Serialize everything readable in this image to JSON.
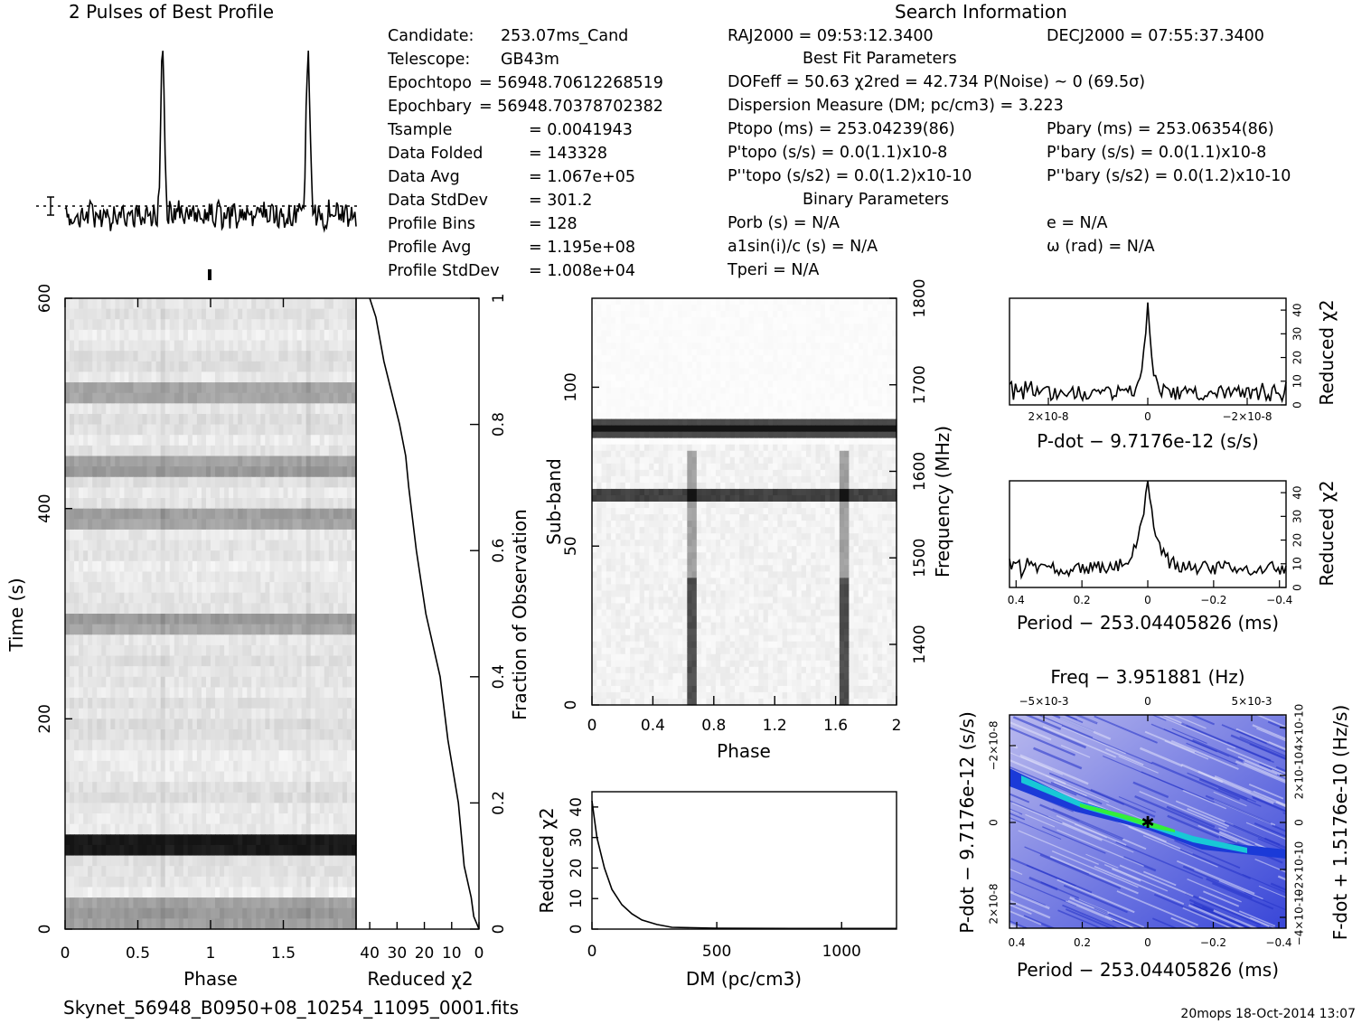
{
  "profile_panel": {
    "title": "2 Pulses of Best Profile"
  },
  "search_info": {
    "title": "Search Information",
    "ra": "RAJ2000 = 09:53:12.3400",
    "dec": "DECJ2000 = 07:55:37.3400",
    "best_fit_title": "Best Fit Parameters",
    "binary_title": "Binary Parameters",
    "left_rows": [
      {
        "label": "Candidate:",
        "value": "253.07ms_Cand"
      },
      {
        "label": "Telescope:",
        "value": "GB43m"
      },
      {
        "label": "Epochtopo",
        "value": "= 56948.70612268519"
      },
      {
        "label": "Epochbary",
        "value": "= 56948.70378702382"
      },
      {
        "label": "Tsample",
        "value": "=  0.0041943"
      },
      {
        "label": "Data Folded",
        "value": "=  143328"
      },
      {
        "label": "Data Avg",
        "value": "=  1.067e+05"
      },
      {
        "label": "Data StdDev",
        "value": "=  301.2"
      },
      {
        "label": "Profile Bins",
        "value": "=  128"
      },
      {
        "label": "Profile Avg",
        "value": "=  1.195e+08"
      },
      {
        "label": "Profile StdDev",
        "value": "=  1.008e+04"
      }
    ],
    "dof_line": "DOFeff = 50.63  χ2red = 42.734   P(Noise) ~ 0    (69.5σ)",
    "dm_line": "Dispersion Measure (DM; pc/cm3) = 3.223",
    "p_topo": "Ptopo (ms) =  253.04239(86)",
    "pd_topo": "P'topo (s/s) = 0.0(1.1)x10-8",
    "pdd_topo": "P''topo (s/s2) = 0.0(1.2)x10-10",
    "p_bary": "Pbary (ms) =  253.06354(86)",
    "pd_bary": "P'bary (s/s) = 0.0(1.1)x10-8",
    "pdd_bary": "P''bary (s/s2) = 0.0(1.2)x10-10",
    "porb": "Porb (s) = N/A",
    "a1": "a1sin(i)/c (s) = N/A",
    "tperi": "Tperi = N/A",
    "ecc": "e = N/A",
    "omega": "ω (rad) = N/A"
  },
  "axes": {
    "time_label": "Time (s)",
    "phase_label": "Phase",
    "reduced_chi2_label": "Reduced χ2",
    "fraction_label": "Fraction of Observation",
    "subband_label": "Sub-band",
    "frequency_label": "Frequency (MHz)",
    "dm_label": "DM (pc/cm3)",
    "pdot_label": "P-dot − 9.7176e-12 (s/s)",
    "period_label": "Period − 253.04405826 (ms)",
    "freq_label": "Freq − 3.951881 (Hz)",
    "fdot_label": "F-dot + 1.5176e-10 (Hz/s)"
  },
  "footer": {
    "filename": "Skynet_56948_B0950+08_10254_11095_0001.fits",
    "stamp": "20mops 18-Oct-2014 13:07"
  },
  "colors": {
    "ink": "#000000",
    "ppdot_low": "#1a2ad8",
    "ppdot_mid": "#00d6d6",
    "ppdot_high": "#3cff3c",
    "ppdot_bg": "#c8c8f0"
  },
  "chart_data": [
    {
      "type": "line",
      "title": "2 Pulses of Best Profile",
      "xlabel": "",
      "ylabel": "",
      "x_range": [
        0,
        2
      ],
      "peaks_at_phase": [
        0.67,
        1.67
      ],
      "peak_height_rel": 1.0,
      "baseline_rel": 0.15
    },
    {
      "type": "heatmap",
      "name": "time-phase",
      "xlabel": "Phase",
      "ylabel": "Time (s)",
      "x_range": [
        0,
        2
      ],
      "y_range": [
        0,
        600
      ],
      "x_ticks": [
        "0",
        "0.5",
        "1",
        "1.5"
      ],
      "y_ticks": [
        "0",
        "200",
        "400",
        "600"
      ],
      "dark_rows_time_s": [
        80,
        10,
        24,
        510,
        440,
        390,
        290
      ]
    },
    {
      "type": "line",
      "name": "reduced-chi2 vs fraction",
      "xlabel": "Reduced χ2",
      "ylabel": "Fraction of Observation",
      "x_ticks": [
        "40",
        "30",
        "20",
        "10",
        "0"
      ],
      "y_ticks": [
        "0",
        "0.2",
        "0.4",
        "0.6",
        "0.8",
        "1"
      ],
      "x_range": [
        45,
        0
      ],
      "y_range": [
        0,
        1
      ],
      "points": [
        [
          0,
          0
        ],
        [
          1,
          0.02
        ],
        [
          3,
          0.05
        ],
        [
          5,
          0.1
        ],
        [
          8,
          0.2
        ],
        [
          11,
          0.3
        ],
        [
          14,
          0.4
        ],
        [
          19,
          0.5
        ],
        [
          23,
          0.6
        ],
        [
          26,
          0.7
        ],
        [
          27,
          0.75
        ],
        [
          30,
          0.8
        ],
        [
          34,
          0.9
        ],
        [
          38,
          0.97
        ],
        [
          40,
          1.0
        ]
      ]
    },
    {
      "type": "heatmap",
      "name": "subband-phase",
      "xlabel": "Phase",
      "ylabel": "Sub-band",
      "x_range": [
        0,
        2
      ],
      "y_range": [
        0,
        128
      ],
      "x_ticks": [
        "0",
        "0.4",
        "0.8",
        "1.2",
        "1.6",
        "2"
      ],
      "y_ticks": [
        "0",
        "50",
        "100"
      ],
      "right_ticks": [
        "1400",
        "1500",
        "1600",
        "1700",
        "1800"
      ],
      "dark_subbands": [
        66,
        86,
        88
      ]
    },
    {
      "type": "line",
      "name": "reduced-chi2 vs DM",
      "xlabel": "DM (pc/cm3)",
      "ylabel": "Reduced χ2",
      "x_range": [
        0,
        1220
      ],
      "y_range": [
        0,
        45
      ],
      "x_ticks": [
        "0",
        "500",
        "1000"
      ],
      "y_ticks": [
        "0",
        "10",
        "20",
        "30",
        "40"
      ],
      "points": [
        [
          0,
          42
        ],
        [
          20,
          30
        ],
        [
          50,
          20
        ],
        [
          80,
          13
        ],
        [
          120,
          8
        ],
        [
          160,
          5
        ],
        [
          200,
          3
        ],
        [
          260,
          1.5
        ],
        [
          320,
          0.6
        ],
        [
          500,
          0.3
        ],
        [
          800,
          0.2
        ],
        [
          1220,
          0.2
        ]
      ]
    },
    {
      "type": "line",
      "name": "reduced-chi2 vs P-dot",
      "xlabel": "P-dot − 9.7176e-12 (s/s)",
      "ylabel": "Reduced χ2",
      "x_ticks": [
        "2×10-8",
        "0",
        "−2×10-8"
      ],
      "y_ticks": [
        "0",
        "10",
        "20",
        "30",
        "40"
      ],
      "peak": 43,
      "baseline": 5
    },
    {
      "type": "line",
      "name": "reduced-chi2 vs Period",
      "xlabel": "Period − 253.04405826 (ms)",
      "ylabel": "Reduced χ2",
      "x_range": [
        0.42,
        -0.42
      ],
      "x_ticks": [
        "0.4",
        "0.2",
        "0",
        "−0.2",
        "−0.4"
      ],
      "y_ticks": [
        "0",
        "10",
        "20",
        "30",
        "40"
      ],
      "peak": 43,
      "baseline": 8
    },
    {
      "type": "heatmap",
      "name": "P-Pdot plane",
      "title": "Freq − 3.951881 (Hz)",
      "xlabel": "Period − 253.04405826 (ms)",
      "ylabel": "P-dot − 9.7176e-12 (s/s)",
      "x_ticks": [
        "0.4",
        "0.2",
        "0",
        "−0.2",
        "−0.4"
      ],
      "top_ticks": [
        "−5×10-3",
        "0",
        "5×10-3"
      ],
      "y_ticks": [
        "2×10-8",
        "0",
        "−2×10-8"
      ],
      "right_ticks": [
        "−4×10-10",
        "−2×10-10",
        "0",
        "2×10-10",
        "4×10-10"
      ],
      "best_point": [
        0,
        0
      ]
    }
  ]
}
